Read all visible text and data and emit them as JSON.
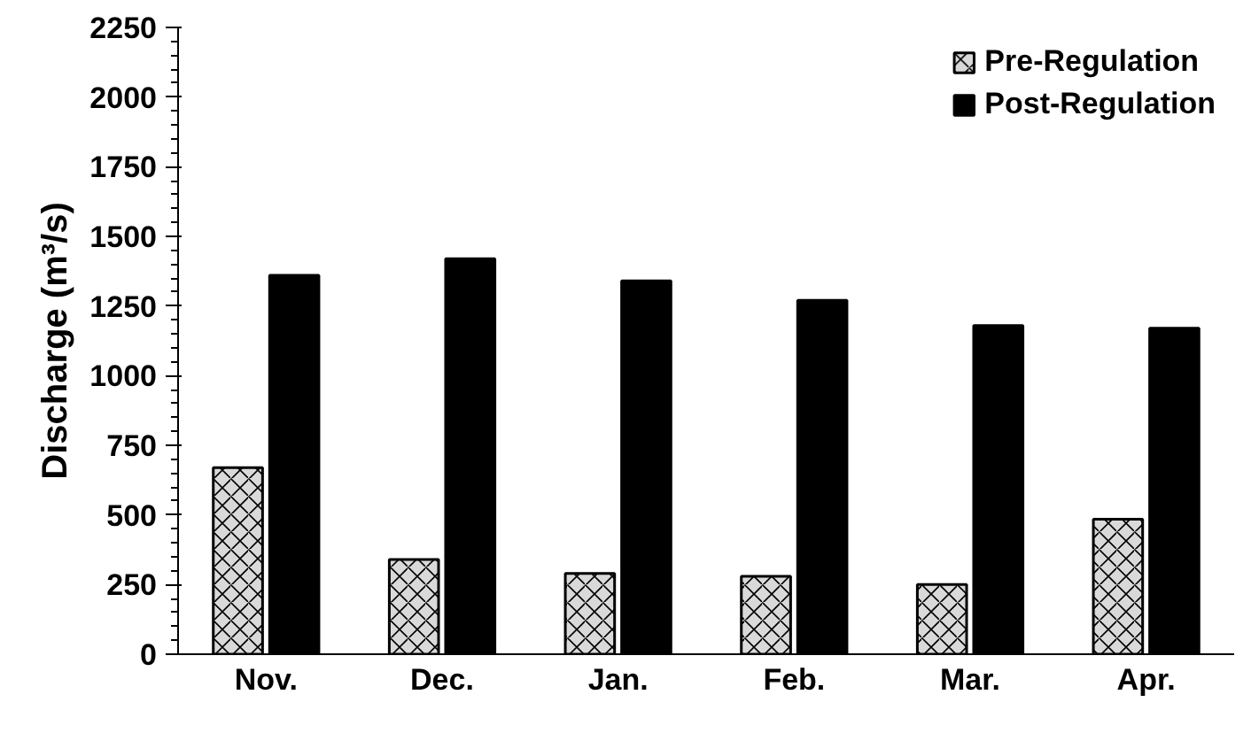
{
  "chart_data": {
    "type": "bar",
    "ylabel": "Discharge (m³/s)",
    "categories": [
      "Nov.",
      "Dec.",
      "Jan.",
      "Feb.",
      "Mar.",
      "Apr."
    ],
    "series": [
      {
        "name": "Pre-Regulation",
        "color": "#d9d9d9",
        "values": [
          670,
          340,
          290,
          280,
          250,
          485
        ]
      },
      {
        "name": "Post-Regulation",
        "color": "#000000",
        "values": [
          1360,
          1420,
          1340,
          1270,
          1180,
          1170
        ]
      }
    ],
    "ylim": [
      0,
      2250
    ],
    "yticks": [
      0,
      250,
      500,
      750,
      1000,
      1250,
      1500,
      1750,
      2000,
      2250
    ],
    "grid": false,
    "legend": "top right"
  }
}
